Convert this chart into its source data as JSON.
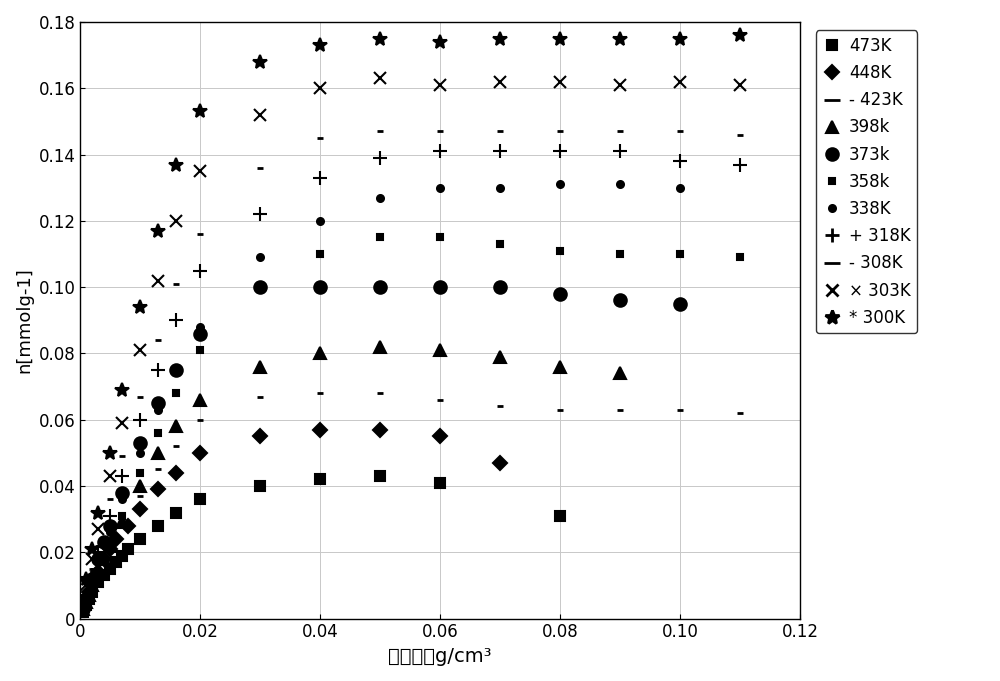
{
  "xlabel": "气体密度g/cm³",
  "ylabel": "n[mmolg-1]",
  "xlim": [
    0,
    0.12
  ],
  "ylim": [
    0,
    0.18
  ],
  "xticks": [
    0,
    0.02,
    0.04,
    0.06,
    0.08,
    0.1,
    0.12
  ],
  "yticks": [
    0,
    0.02,
    0.04,
    0.06,
    0.08,
    0.1,
    0.12,
    0.14,
    0.16,
    0.18
  ],
  "series": [
    {
      "label": "473K",
      "marker": "s",
      "markersize": 7,
      "x": [
        0.0005,
        0.001,
        0.0015,
        0.002,
        0.003,
        0.004,
        0.005,
        0.006,
        0.007,
        0.008,
        0.01,
        0.013,
        0.016,
        0.02,
        0.03,
        0.04,
        0.05,
        0.06,
        0.08
      ],
      "y": [
        0.002,
        0.004,
        0.006,
        0.008,
        0.011,
        0.013,
        0.015,
        0.017,
        0.019,
        0.021,
        0.024,
        0.028,
        0.032,
        0.036,
        0.04,
        0.042,
        0.043,
        0.041,
        0.031
      ]
    },
    {
      "label": "448K",
      "marker": "D",
      "markersize": 7,
      "x": [
        0.0005,
        0.001,
        0.0015,
        0.002,
        0.003,
        0.004,
        0.005,
        0.006,
        0.008,
        0.01,
        0.013,
        0.016,
        0.02,
        0.03,
        0.04,
        0.05,
        0.06,
        0.07
      ],
      "y": [
        0.003,
        0.005,
        0.008,
        0.01,
        0.014,
        0.018,
        0.021,
        0.024,
        0.028,
        0.033,
        0.039,
        0.044,
        0.05,
        0.055,
        0.057,
        0.057,
        0.055,
        0.047
      ]
    },
    {
      "label": "- 423K",
      "marker": "D",
      "marker_display": "-",
      "markersize": 5,
      "x": [
        0.001,
        0.002,
        0.003,
        0.004,
        0.005,
        0.007,
        0.01,
        0.013,
        0.016,
        0.02,
        0.03,
        0.04,
        0.05,
        0.06,
        0.07,
        0.08,
        0.09,
        0.1,
        0.11
      ],
      "y": [
        0.005,
        0.009,
        0.013,
        0.017,
        0.021,
        0.028,
        0.037,
        0.045,
        0.052,
        0.06,
        0.067,
        0.068,
        0.068,
        0.066,
        0.064,
        0.063,
        0.063,
        0.063,
        0.062
      ]
    },
    {
      "label": "398k",
      "marker": "^",
      "markersize": 8,
      "x": [
        0.0005,
        0.001,
        0.0015,
        0.002,
        0.003,
        0.004,
        0.005,
        0.007,
        0.01,
        0.013,
        0.016,
        0.02,
        0.03,
        0.04,
        0.05,
        0.06,
        0.07,
        0.08,
        0.09
      ],
      "y": [
        0.003,
        0.005,
        0.007,
        0.01,
        0.014,
        0.018,
        0.022,
        0.029,
        0.04,
        0.05,
        0.058,
        0.066,
        0.076,
        0.08,
        0.082,
        0.081,
        0.079,
        0.076,
        0.074
      ]
    },
    {
      "label": "373k",
      "marker": "o",
      "markersize": 9,
      "x": [
        0.0005,
        0.001,
        0.002,
        0.003,
        0.004,
        0.005,
        0.007,
        0.01,
        0.013,
        0.016,
        0.02,
        0.03,
        0.04,
        0.05,
        0.06,
        0.07,
        0.08,
        0.09,
        0.1
      ],
      "y": [
        0.003,
        0.006,
        0.012,
        0.018,
        0.023,
        0.028,
        0.038,
        0.053,
        0.065,
        0.075,
        0.086,
        0.1,
        0.1,
        0.1,
        0.1,
        0.1,
        0.098,
        0.096,
        0.095
      ]
    },
    {
      "label": "358k",
      "marker": "s",
      "markersize": 5,
      "x": [
        0.001,
        0.002,
        0.003,
        0.004,
        0.005,
        0.007,
        0.01,
        0.013,
        0.016,
        0.02,
        0.03,
        0.04,
        0.05,
        0.06,
        0.07,
        0.08,
        0.09,
        0.1,
        0.11
      ],
      "y": [
        0.005,
        0.009,
        0.014,
        0.018,
        0.023,
        0.031,
        0.044,
        0.056,
        0.068,
        0.081,
        0.1,
        0.11,
        0.115,
        0.115,
        0.113,
        0.111,
        0.11,
        0.11,
        0.109
      ]
    },
    {
      "label": "338K",
      "marker": "o",
      "markersize": 5,
      "x": [
        0.001,
        0.002,
        0.003,
        0.005,
        0.007,
        0.01,
        0.013,
        0.016,
        0.02,
        0.03,
        0.04,
        0.05,
        0.06,
        0.07,
        0.08,
        0.09,
        0.1
      ],
      "y": [
        0.006,
        0.011,
        0.017,
        0.026,
        0.036,
        0.05,
        0.063,
        0.075,
        0.088,
        0.109,
        0.12,
        0.127,
        0.13,
        0.13,
        0.131,
        0.131,
        0.13
      ]
    },
    {
      "label": "+ 318K",
      "marker": "+",
      "markersize": 10,
      "x": [
        0.001,
        0.002,
        0.003,
        0.005,
        0.007,
        0.01,
        0.013,
        0.016,
        0.02,
        0.03,
        0.04,
        0.05,
        0.06,
        0.07,
        0.08,
        0.09,
        0.1,
        0.11
      ],
      "y": [
        0.007,
        0.013,
        0.02,
        0.031,
        0.043,
        0.06,
        0.075,
        0.09,
        0.105,
        0.122,
        0.133,
        0.139,
        0.141,
        0.141,
        0.141,
        0.141,
        0.138,
        0.137
      ]
    },
    {
      "label": "- 308K",
      "marker": "D",
      "marker_display": "-",
      "markersize": 5,
      "x": [
        0.001,
        0.002,
        0.003,
        0.005,
        0.007,
        0.01,
        0.013,
        0.016,
        0.02,
        0.03,
        0.04,
        0.05,
        0.06,
        0.07,
        0.08,
        0.09,
        0.1,
        0.11
      ],
      "y": [
        0.008,
        0.015,
        0.022,
        0.036,
        0.049,
        0.067,
        0.084,
        0.101,
        0.116,
        0.136,
        0.145,
        0.147,
        0.147,
        0.147,
        0.147,
        0.147,
        0.147,
        0.146
      ]
    },
    {
      "label": "× 303K",
      "marker": "x",
      "markersize": 9,
      "x": [
        0.001,
        0.002,
        0.003,
        0.005,
        0.007,
        0.01,
        0.013,
        0.016,
        0.02,
        0.03,
        0.04,
        0.05,
        0.06,
        0.07,
        0.08,
        0.09,
        0.1,
        0.11
      ],
      "y": [
        0.01,
        0.018,
        0.027,
        0.043,
        0.059,
        0.081,
        0.102,
        0.12,
        0.135,
        0.152,
        0.16,
        0.163,
        0.161,
        0.162,
        0.162,
        0.161,
        0.162,
        0.161
      ]
    },
    {
      "label": "* 300K",
      "marker": "*",
      "markersize": 10,
      "x": [
        0.001,
        0.002,
        0.003,
        0.005,
        0.007,
        0.01,
        0.013,
        0.016,
        0.02,
        0.03,
        0.04,
        0.05,
        0.06,
        0.07,
        0.08,
        0.09,
        0.1,
        0.11
      ],
      "y": [
        0.012,
        0.021,
        0.032,
        0.05,
        0.069,
        0.094,
        0.117,
        0.137,
        0.153,
        0.168,
        0.173,
        0.175,
        0.174,
        0.175,
        0.175,
        0.175,
        0.175,
        0.176
      ]
    }
  ],
  "legend_info": [
    {
      "label": "473K",
      "marker": "s",
      "markersize": 7,
      "filled": true
    },
    {
      "label": "448K",
      "marker": "D",
      "markersize": 7,
      "filled": true
    },
    {
      "label": "- 423K",
      "marker": "_",
      "markersize": 12,
      "filled": false
    },
    {
      "label": "398k",
      "marker": "^",
      "markersize": 8,
      "filled": true
    },
    {
      "label": "373k",
      "marker": "o",
      "markersize": 9,
      "filled": true
    },
    {
      "label": "358k",
      "marker": "s",
      "markersize": 5,
      "filled": true
    },
    {
      "label": "338K",
      "marker": "o",
      "markersize": 5,
      "filled": true
    },
    {
      "label": "+ 318K",
      "marker": "+",
      "markersize": 10,
      "filled": false
    },
    {
      "label": "- 308K",
      "marker": "_",
      "markersize": 12,
      "filled": false
    },
    {
      "label": "× 303K",
      "marker": "x",
      "markersize": 9,
      "filled": false
    },
    {
      "label": "* 300K",
      "marker": "*",
      "markersize": 10,
      "filled": true
    }
  ]
}
